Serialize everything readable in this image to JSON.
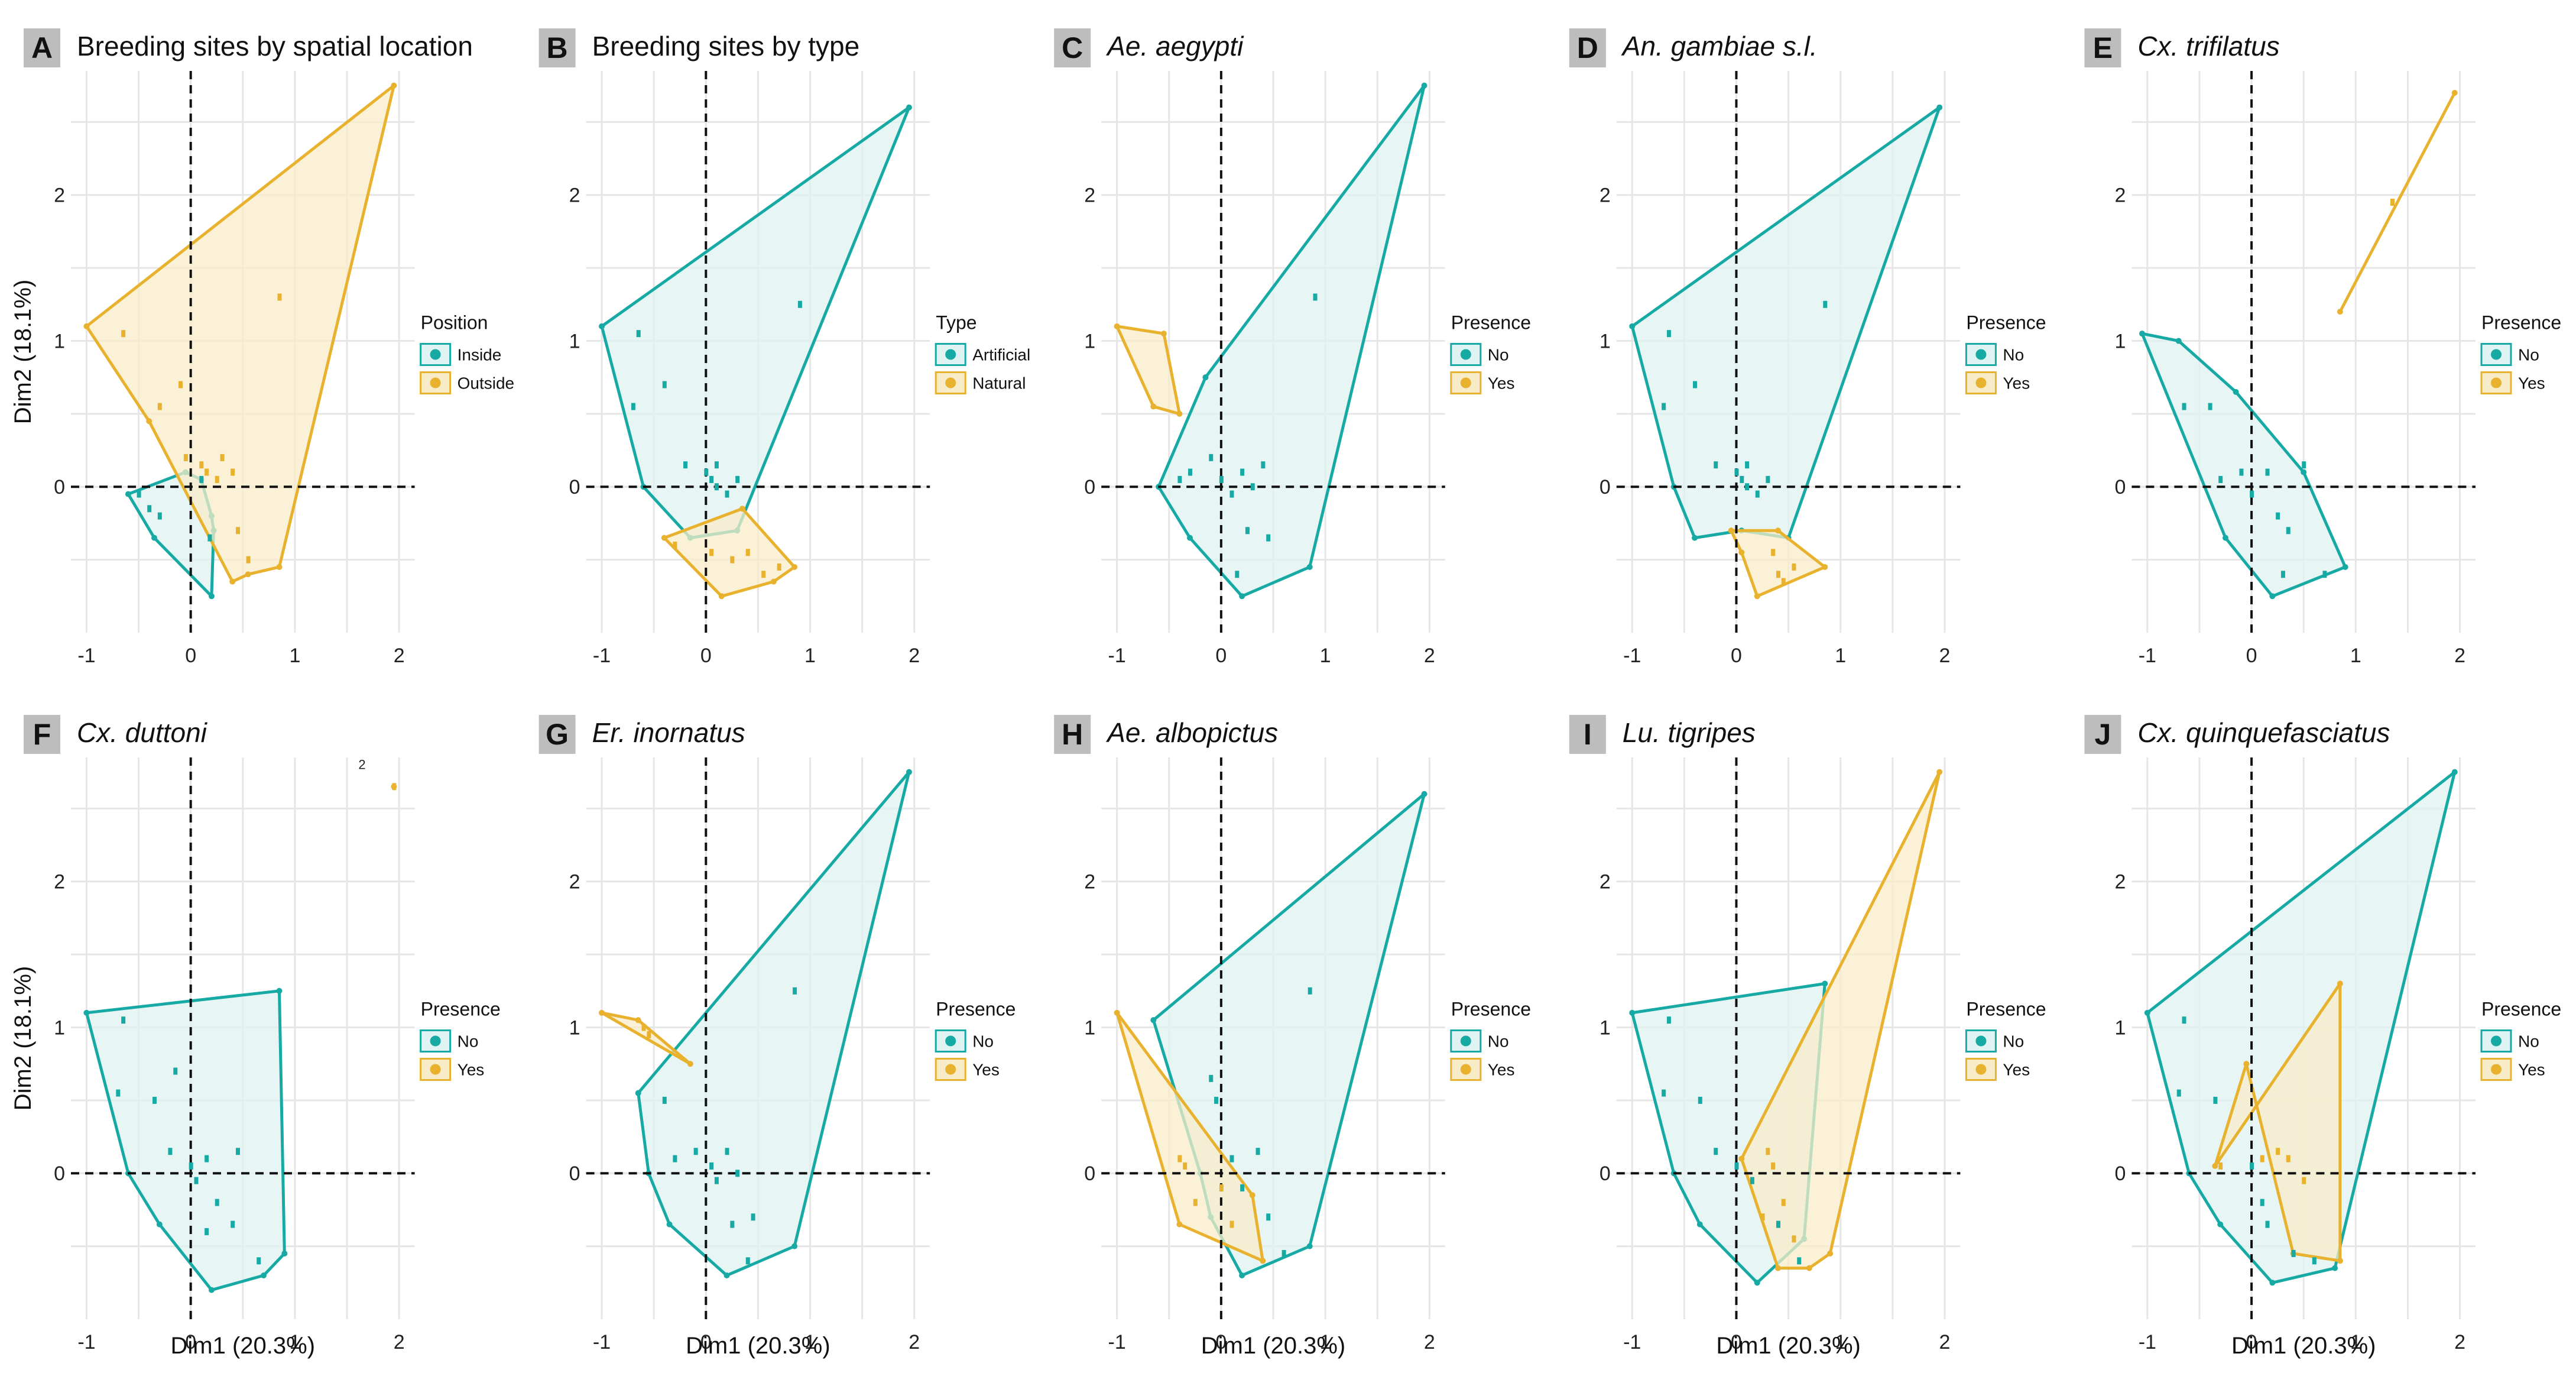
{
  "colors": {
    "teal": "#17aaa5",
    "teal_fill": "#dff3f2",
    "gold": "#e8b22e",
    "gold_fill": "#f8ecc8",
    "panel_label_bg": "#bdbdbd"
  },
  "axes": {
    "xlabel": "Dim1 (20.3%)",
    "ylabel": "Dim2 (18.1%)",
    "x_ticks": [
      "-1",
      "0",
      "1",
      "2"
    ],
    "y_ticks": [
      "0",
      "1",
      "2"
    ]
  },
  "chart_data": [
    {
      "id": "A",
      "title": "Breeding sites by spatial location",
      "italic": false,
      "type": "scatter",
      "legend": {
        "title": "Position",
        "entries": [
          "Inside",
          "Outside"
        ]
      },
      "hull_x": [
        [
          -0.6,
          -0.35,
          0.2,
          0.22,
          0.2,
          0.1,
          -0.05
        ],
        [
          -1.0,
          1.95,
          0.85,
          0.55,
          0.4,
          -0.4
        ]
      ],
      "hull_y": [
        [
          -0.05,
          -0.35,
          -0.75,
          -0.3,
          -0.2,
          0.05,
          0.1
        ],
        [
          1.1,
          2.75,
          -0.55,
          -0.6,
          -0.65,
          0.45
        ]
      ],
      "point_x": [
        [
          -0.5,
          -0.4,
          -0.3,
          0.1,
          0.18
        ],
        [
          -0.65,
          -0.3,
          -0.1,
          -0.05,
          0.1,
          0.15,
          0.25,
          0.3,
          0.4,
          0.45,
          0.55,
          0.85
        ]
      ],
      "point_y": [
        [
          -0.05,
          -0.15,
          -0.2,
          0.05,
          -0.35
        ],
        [
          1.05,
          0.55,
          0.7,
          0.2,
          0.15,
          0.1,
          0.05,
          0.2,
          0.1,
          -0.3,
          -0.5,
          1.3
        ]
      ]
    },
    {
      "id": "B",
      "title": "Breeding sites by type",
      "italic": false,
      "type": "scatter",
      "legend": {
        "title": "Type",
        "entries": [
          "Artificial",
          "Natural"
        ]
      },
      "hull_x": [
        [
          -1.0,
          1.95,
          0.3,
          -0.15,
          -0.6
        ],
        [
          -0.4,
          0.35,
          0.85,
          0.65,
          0.15
        ]
      ],
      "hull_y": [
        [
          1.1,
          2.6,
          -0.3,
          -0.35,
          0.0
        ],
        [
          -0.35,
          -0.15,
          -0.55,
          -0.65,
          -0.75
        ]
      ],
      "point_x": [
        [
          -0.65,
          -0.7,
          -0.4,
          -0.2,
          0.0,
          0.05,
          0.1,
          0.2,
          0.3,
          0.1,
          0.9
        ],
        [
          -0.3,
          0.05,
          0.25,
          0.4,
          0.55,
          0.7
        ]
      ],
      "point_y": [
        [
          1.05,
          0.55,
          0.7,
          0.15,
          0.1,
          0.05,
          0.0,
          -0.05,
          0.05,
          0.15,
          1.25
        ],
        [
          -0.4,
          -0.45,
          -0.5,
          -0.45,
          -0.6,
          -0.55
        ]
      ]
    },
    {
      "id": "C",
      "title": "Ae. aegypti",
      "italic": true,
      "type": "scatter",
      "legend": {
        "title": "Presence",
        "entries": [
          "No",
          "Yes"
        ]
      },
      "hull_x": [
        [
          -0.6,
          -0.15,
          1.95,
          0.85,
          0.2,
          -0.3
        ],
        [
          -1.0,
          -0.55,
          -0.4,
          -0.65
        ]
      ],
      "hull_y": [
        [
          0.0,
          0.75,
          2.75,
          -0.55,
          -0.75,
          -0.35
        ],
        [
          1.1,
          1.05,
          0.5,
          0.55
        ]
      ],
      "point_x": [
        [
          -0.4,
          -0.3,
          -0.1,
          0.0,
          0.1,
          0.2,
          0.3,
          0.4,
          0.25,
          0.45,
          0.15,
          0.9
        ],
        [
          -0.65,
          -0.6
        ]
      ],
      "point_y": [
        [
          0.05,
          0.1,
          0.2,
          0.05,
          -0.05,
          0.1,
          0.0,
          0.15,
          -0.3,
          -0.35,
          -0.6,
          1.3
        ]
      ]
    },
    {
      "id": "D",
      "title": "An. gambiae s.l.",
      "italic": true,
      "type": "scatter",
      "legend": {
        "title": "Presence",
        "entries": [
          "No",
          "Yes"
        ]
      },
      "hull_x": [
        [
          -1.0,
          1.95,
          0.5,
          0.05,
          -0.4,
          -0.6
        ],
        [
          -0.05,
          0.4,
          0.85,
          0.2,
          0.05
        ]
      ],
      "hull_y": [
        [
          1.1,
          2.6,
          -0.35,
          -0.3,
          -0.35,
          0.0
        ],
        [
          -0.3,
          -0.3,
          -0.55,
          -0.75,
          -0.45
        ]
      ],
      "point_x": [
        [
          -0.65,
          -0.7,
          -0.4,
          -0.2,
          0.0,
          0.05,
          0.1,
          0.2,
          0.3,
          0.1,
          0.85
        ],
        [
          0.4,
          0.45,
          0.55,
          0.35
        ]
      ],
      "point_y": [
        [
          1.05,
          0.55,
          0.7,
          0.15,
          0.1,
          0.05,
          0.0,
          -0.05,
          0.05,
          0.15,
          1.25
        ],
        [
          -0.6,
          -0.65,
          -0.55,
          -0.45
        ]
      ]
    },
    {
      "id": "E",
      "title": "Cx. trifilatus",
      "italic": true,
      "type": "scatter",
      "legend": {
        "title": "Presence",
        "entries": [
          "No",
          "Yes"
        ]
      },
      "hull_x": [
        [
          -1.05,
          -0.7,
          -0.15,
          0.5,
          0.9,
          0.2,
          -0.25
        ],
        [
          0.85,
          1.95
        ]
      ],
      "hull_y": [
        [
          1.05,
          1.0,
          0.65,
          0.1,
          -0.55,
          -0.75,
          -0.35
        ],
        [
          1.2,
          2.7
        ]
      ],
      "point_x": [
        [
          -0.65,
          -0.4,
          -0.3,
          -0.1,
          0.0,
          0.15,
          0.25,
          0.35,
          0.5,
          0.3,
          0.7
        ],
        [
          1.35
        ]
      ],
      "point_y": [
        [
          0.55,
          0.55,
          0.05,
          0.1,
          -0.05,
          0.1,
          -0.2,
          -0.3,
          0.15,
          -0.6,
          -0.6
        ],
        [
          1.95
        ]
      ]
    },
    {
      "id": "F",
      "title": "Cx. duttoni",
      "italic": true,
      "type": "scatter",
      "legend": {
        "title": "Presence",
        "entries": [
          "No",
          "Yes"
        ]
      },
      "hull_x": [
        [
          -1.0,
          0.85,
          0.9,
          0.7,
          0.2,
          -0.3,
          -0.6
        ],
        [
          1.95
        ]
      ],
      "hull_y": [
        [
          1.1,
          1.25,
          -0.55,
          -0.7,
          -0.8,
          -0.35,
          0.0
        ],
        [
          2.65
        ]
      ],
      "point_x": [
        [
          -0.65,
          -0.7,
          -0.35,
          -0.2,
          0.0,
          0.05,
          0.15,
          0.25,
          0.45,
          0.4,
          0.15,
          0.65,
          -0.15
        ],
        [
          1.95
        ]
      ],
      "point_y": [
        [
          1.05,
          0.55,
          0.5,
          0.15,
          0.05,
          -0.05,
          0.1,
          -0.2,
          0.15,
          -0.35,
          -0.4,
          -0.6,
          0.7
        ],
        [
          2.65
        ]
      ],
      "annotation": "2"
    },
    {
      "id": "G",
      "title": "Er. inornatus",
      "italic": true,
      "type": "scatter",
      "legend": {
        "title": "Presence",
        "entries": [
          "No",
          "Yes"
        ]
      },
      "hull_x": [
        [
          -0.65,
          1.95,
          0.85,
          0.2,
          -0.35,
          -0.55
        ],
        [
          -1.0,
          -0.65,
          -0.15
        ]
      ],
      "hull_y": [
        [
          0.55,
          2.75,
          -0.5,
          -0.7,
          -0.35,
          0.0
        ],
        [
          1.1,
          1.05,
          0.75
        ]
      ],
      "point_x": [
        [
          -0.4,
          -0.3,
          -0.1,
          0.05,
          0.1,
          0.2,
          0.3,
          0.45,
          0.25,
          0.4,
          0.85
        ],
        [
          -0.6,
          -0.55
        ]
      ],
      "point_y": [
        [
          0.5,
          0.1,
          0.15,
          0.05,
          -0.05,
          0.15,
          0.0,
          -0.3,
          -0.35,
          -0.6,
          1.25
        ],
        [
          1.0,
          0.95
        ]
      ]
    },
    {
      "id": "H",
      "title": "Ae. albopictus",
      "italic": true,
      "type": "scatter",
      "legend": {
        "title": "Presence",
        "entries": [
          "No",
          "Yes"
        ]
      },
      "hull_x": [
        [
          -0.65,
          1.95,
          0.85,
          0.2,
          -0.1,
          -0.2
        ],
        [
          -1.0,
          0.3,
          0.4,
          -0.4
        ]
      ],
      "hull_y": [
        [
          1.05,
          2.6,
          -0.5,
          -0.7,
          -0.3,
          0.0
        ],
        [
          1.1,
          -0.15,
          -0.6,
          -0.35
        ]
      ],
      "point_x": [
        [
          -0.1,
          0.1,
          0.2,
          0.35,
          0.45,
          0.6,
          0.85,
          -0.05
        ],
        [
          -0.4,
          -0.35,
          -0.25,
          0.0,
          0.1
        ]
      ],
      "point_y": [
        [
          0.65,
          0.1,
          -0.1,
          0.15,
          -0.3,
          -0.55,
          1.25,
          0.5
        ],
        [
          0.1,
          0.05,
          -0.2,
          -0.1,
          -0.35
        ]
      ]
    },
    {
      "id": "I",
      "title": "Lu. tigripes",
      "italic": true,
      "type": "scatter",
      "legend": {
        "title": "Presence",
        "entries": [
          "No",
          "Yes"
        ]
      },
      "hull_x": [
        [
          -1.0,
          0.85,
          0.65,
          0.2,
          -0.35,
          -0.6
        ],
        [
          0.05,
          1.95,
          0.9,
          0.7,
          0.4
        ]
      ],
      "hull_y": [
        [
          1.1,
          1.3,
          -0.45,
          -0.75,
          -0.35,
          0.0
        ],
        [
          0.1,
          2.75,
          -0.55,
          -0.65,
          -0.65
        ]
      ],
      "point_x": [
        [
          -0.65,
          -0.7,
          -0.35,
          -0.2,
          0.0,
          0.15,
          0.4,
          0.6
        ],
        [
          0.3,
          0.35,
          0.45,
          0.25,
          0.55
        ]
      ],
      "point_y": [
        [
          1.05,
          0.55,
          0.5,
          0.15,
          0.05,
          -0.05,
          -0.35,
          -0.6
        ],
        [
          0.15,
          0.05,
          -0.2,
          -0.3,
          -0.45
        ]
      ]
    },
    {
      "id": "J",
      "title": "Cx. quinquefasciatus",
      "italic": true,
      "type": "scatter",
      "legend": {
        "title": "Presence",
        "entries": [
          "No",
          "Yes"
        ]
      },
      "hull_x": [
        [
          -1.0,
          1.95,
          0.8,
          0.2,
          -0.3,
          -0.6
        ],
        [
          -0.35,
          0.85,
          0.85,
          0.4,
          -0.05
        ]
      ],
      "hull_y": [
        [
          1.1,
          2.75,
          -0.65,
          -0.75,
          -0.35,
          0.0
        ],
        [
          0.05,
          1.3,
          -0.6,
          -0.55,
          0.75
        ]
      ],
      "point_x": [
        [
          -0.65,
          -0.7,
          -0.35,
          0.0,
          0.1,
          0.15,
          0.4,
          0.6
        ],
        [
          -0.3,
          0.1,
          0.25,
          0.35,
          0.5
        ]
      ],
      "point_y": [
        [
          1.05,
          0.55,
          0.5,
          0.05,
          -0.2,
          -0.35,
          -0.55,
          -0.6
        ],
        [
          0.05,
          0.1,
          0.15,
          0.1,
          -0.05
        ]
      ]
    }
  ]
}
